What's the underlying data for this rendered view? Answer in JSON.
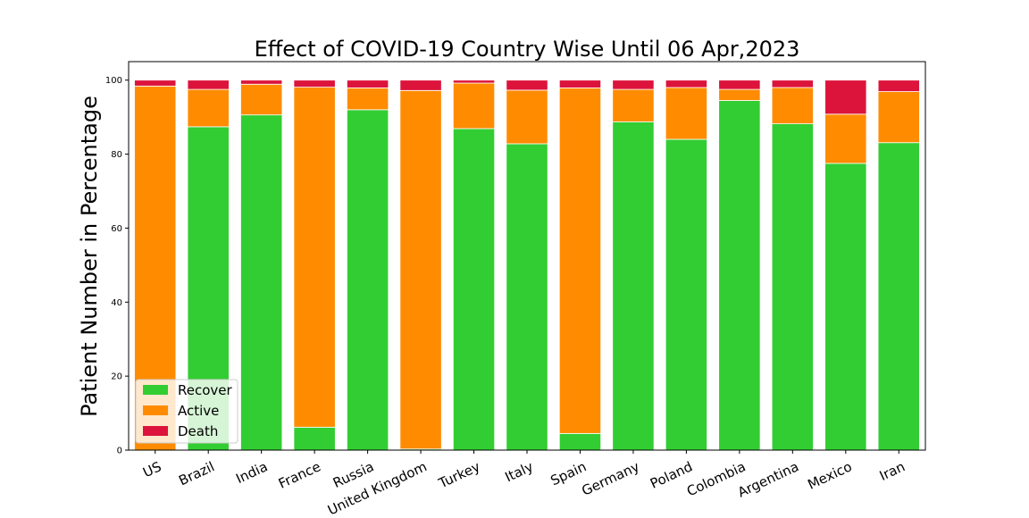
{
  "chart_data": {
    "type": "bar",
    "stacked": true,
    "title": "Effect of COVID-19 Country Wise Until 06 Apr,2023",
    "xlabel": "",
    "ylabel": "Patient Number in Percentage",
    "ylim": [
      0,
      105
    ],
    "yticks": [
      0,
      20,
      40,
      60,
      80,
      100
    ],
    "grid": false,
    "legend_position": "lower-left",
    "categories": [
      "US",
      "Brazil",
      "India",
      "France",
      "Russia",
      "United Kingdom",
      "Turkey",
      "Italy",
      "Spain",
      "Germany",
      "Poland",
      "Colombia",
      "Argentina",
      "Mexico",
      "Iran"
    ],
    "series": [
      {
        "name": "Recover",
        "color": "#32cd32",
        "values": [
          0.0,
          87.4,
          90.6,
          6.2,
          92.0,
          0.3,
          86.9,
          82.8,
          4.5,
          88.7,
          84.0,
          94.5,
          88.2,
          77.5,
          83.1
        ]
      },
      {
        "name": "Active",
        "color": "#ff8c00",
        "values": [
          98.4,
          10.1,
          8.3,
          91.9,
          5.9,
          96.9,
          12.3,
          14.5,
          93.4,
          8.8,
          14.0,
          3.0,
          9.8,
          13.3,
          13.8
        ]
      },
      {
        "name": "Death",
        "color": "#dc143c",
        "values": [
          1.6,
          2.5,
          1.1,
          1.9,
          2.1,
          2.8,
          0.8,
          2.7,
          2.1,
          2.5,
          2.0,
          2.5,
          2.0,
          9.2,
          3.1
        ]
      }
    ]
  }
}
